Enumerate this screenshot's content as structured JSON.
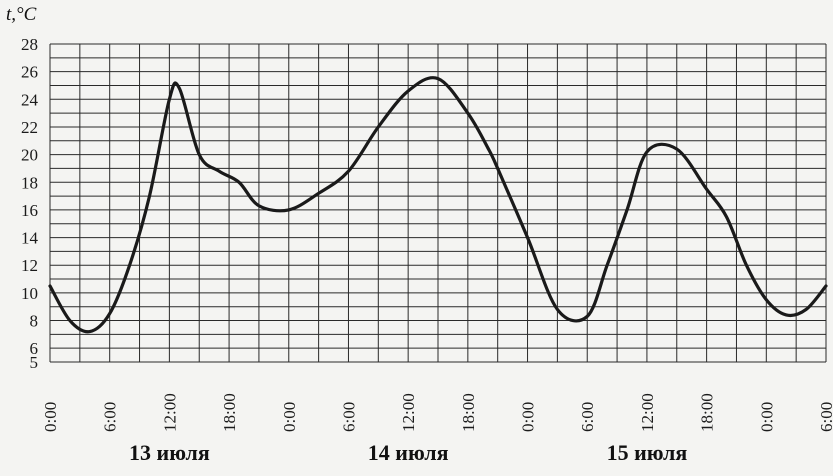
{
  "chart_data": {
    "type": "line",
    "ylabel": "t,°C",
    "xlabel": "",
    "ylim": [
      5,
      28
    ],
    "yticks": [
      5,
      6,
      8,
      10,
      12,
      14,
      16,
      18,
      20,
      22,
      24,
      26,
      28
    ],
    "xlim": [
      0,
      78
    ],
    "grid": true,
    "x_tick_labels": [
      "0:00",
      "6:00",
      "12:00",
      "18:00",
      "0:00",
      "6:00",
      "12:00",
      "18:00",
      "0:00",
      "6:00",
      "12:00",
      "18:00",
      "0:00",
      "6:00"
    ],
    "day_labels": [
      "13 июля",
      "14 июля",
      "15 июля"
    ],
    "series": [
      {
        "x": [
          0,
          2,
          4,
          6,
          8,
          10,
          12,
          13,
          15,
          17,
          19,
          21,
          24,
          27,
          30,
          33,
          36,
          39,
          42,
          44,
          45,
          48,
          51,
          54,
          56,
          58,
          60,
          63,
          66,
          68,
          70,
          72,
          74,
          76,
          78
        ],
        "y": [
          10.5,
          8,
          7.2,
          8.5,
          12,
          17,
          24,
          24.8,
          20,
          18.8,
          18,
          16.3,
          16,
          17.2,
          18.8,
          22,
          24.6,
          25.5,
          23,
          20.5,
          19,
          14,
          8.8,
          8.3,
          12,
          16,
          20.2,
          20.4,
          17.5,
          15.5,
          12,
          9.5,
          8.4,
          8.8,
          10.5
        ]
      }
    ]
  }
}
